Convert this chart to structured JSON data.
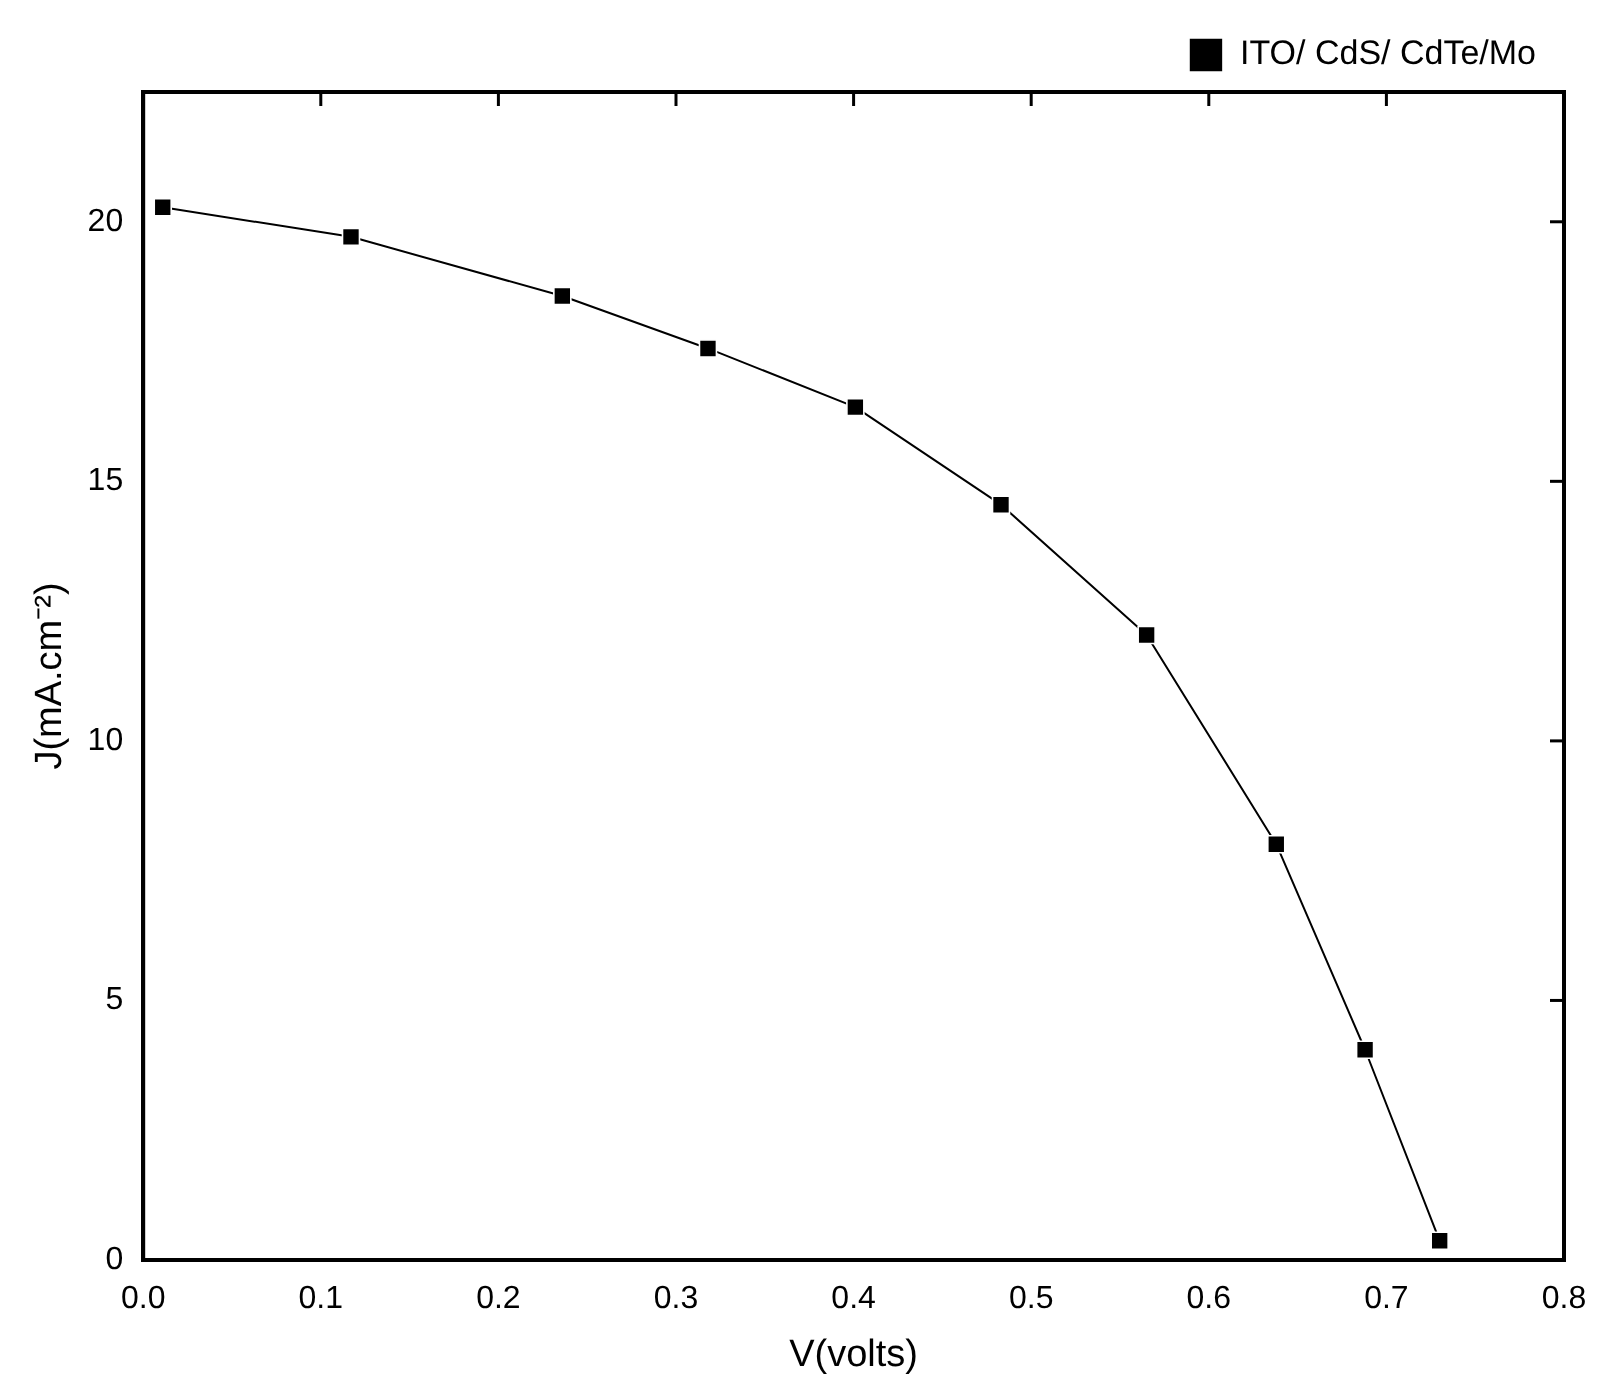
{
  "chart_data": {
    "type": "line",
    "xlabel": "V(volts)",
    "ylabel": "J(mA.cm⁻²)",
    "x": [
      0.011,
      0.117,
      0.236,
      0.318,
      0.401,
      0.483,
      0.565,
      0.638,
      0.688,
      0.73
    ],
    "series": [
      {
        "name": "ITO/ CdS/ CdTe/Mo",
        "color": "#000000",
        "values": [
          20.28,
          19.71,
          18.57,
          17.56,
          16.43,
          14.55,
          12.04,
          8.01,
          4.05,
          0.37
        ]
      }
    ],
    "xlim": [
      0,
      0.8
    ],
    "xticks": [
      {
        "value": 0,
        "label": "0.0"
      },
      0.1,
      0.2,
      0.3,
      0.4,
      0.5,
      0.6,
      0.7,
      0.8
    ],
    "ylim": [
      0,
      22.5
    ],
    "yticks": [
      0,
      5,
      10,
      15,
      20
    ],
    "grid": false,
    "legend": "top right",
    "marker": "square",
    "line_style": "solid"
  }
}
